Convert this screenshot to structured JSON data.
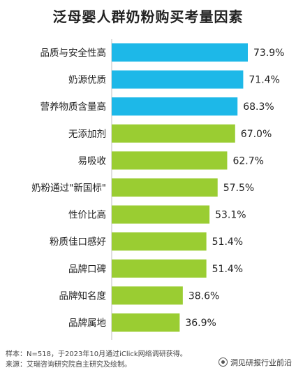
{
  "title": "泛母婴人群奶粉购买考量因素",
  "chart_data": {
    "type": "bar",
    "orientation": "horizontal",
    "title": "泛母婴人群奶粉购买考量因素",
    "categories": [
      "品质与安全性高",
      "奶源优质",
      "营养物质含量高",
      "无添加剂",
      "易吸收",
      "奶粉通过\"新国标\"",
      "性价比高",
      "粉质佳口感好",
      "品牌口碑",
      "品牌知名度",
      "品牌属地"
    ],
    "values": [
      73.9,
      71.4,
      68.3,
      67.0,
      62.7,
      57.5,
      53.1,
      51.4,
      51.4,
      38.6,
      36.9
    ],
    "value_labels": [
      "73.9%",
      "71.4%",
      "68.3%",
      "67.0%",
      "62.7%",
      "57.5%",
      "53.1%",
      "51.4%",
      "51.4%",
      "38.6%",
      "36.9%"
    ],
    "unit": "%",
    "colors": {
      "highlight": "#1DB8E8",
      "normal": "#9ACD32"
    },
    "highlight_count": 3,
    "grid": false,
    "legend": "none"
  },
  "footer": {
    "sample": "样本：N=518，于2023年10月通过iClick网络调研获得。",
    "source": "来源：艾瑞咨询研究院自主研究及绘制。"
  },
  "watermark": {
    "text": "洞见研报行业前沿",
    "icon": "wechat-icon"
  }
}
